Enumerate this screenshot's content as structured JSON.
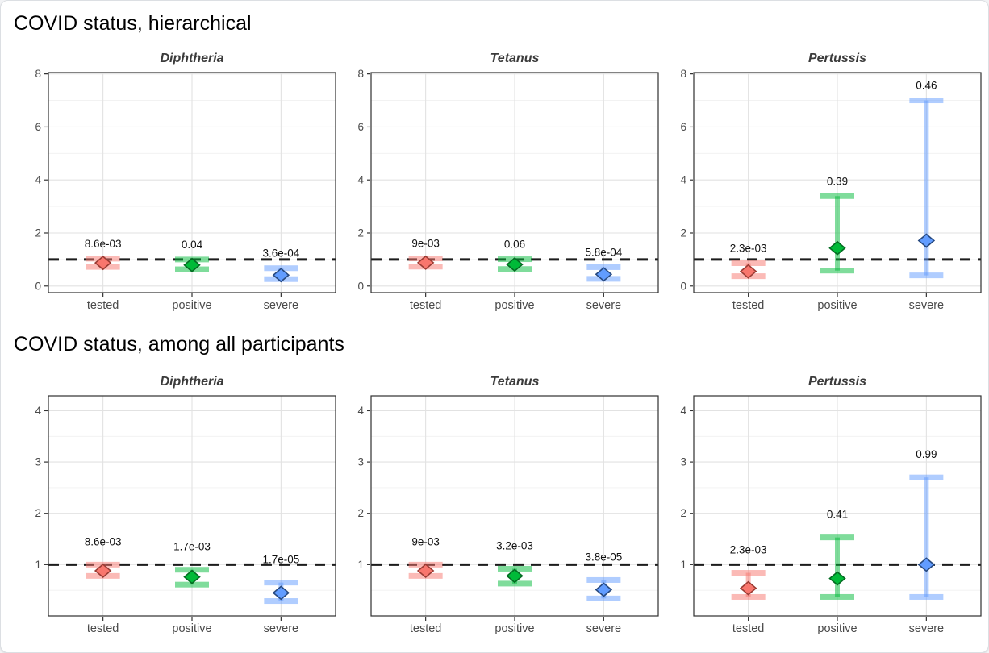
{
  "figure": {
    "sections": [
      {
        "title": "COVID status, hierarchical"
      },
      {
        "title": "COVID status, among all participants"
      }
    ]
  },
  "palette": {
    "tested": {
      "fill": "#F8766D",
      "stroke": "#9A3B33"
    },
    "positive": {
      "fill": "#00BA38",
      "stroke": "#046B22"
    },
    "severe": {
      "fill": "#619CFF",
      "stroke": "#27497F"
    },
    "reference_line": "#1c1c1c",
    "grid_major": "#e2e2e2",
    "grid_minor": "#f0f0f0",
    "panel_border": "#303030"
  },
  "chart_data": [
    {
      "type": "pointrange",
      "section": "COVID status, hierarchical",
      "title": "Diphtheria",
      "categories": [
        "tested",
        "positive",
        "severe"
      ],
      "yticks": [
        0,
        2,
        4,
        6,
        8
      ],
      "ylim": [
        -0.25,
        8.05
      ],
      "reference_line_y": 1,
      "grid": true,
      "points": [
        {
          "category": "tested",
          "estimate": 0.87,
          "lo": 0.72,
          "hi": 1.03,
          "p_label": "8.6e-03"
        },
        {
          "category": "positive",
          "estimate": 0.79,
          "lo": 0.63,
          "hi": 1.0,
          "p_label": "0.04"
        },
        {
          "category": "severe",
          "estimate": 0.41,
          "lo": 0.26,
          "hi": 0.67,
          "p_label": "3.6e-04"
        }
      ]
    },
    {
      "type": "pointrange",
      "section": "COVID status, hierarchical",
      "title": "Tetanus",
      "categories": [
        "tested",
        "positive",
        "severe"
      ],
      "yticks": [
        0,
        2,
        4,
        6,
        8
      ],
      "ylim": [
        -0.25,
        8.05
      ],
      "reference_line_y": 1,
      "grid": true,
      "points": [
        {
          "category": "tested",
          "estimate": 0.88,
          "lo": 0.73,
          "hi": 1.04,
          "p_label": "9e-03"
        },
        {
          "category": "positive",
          "estimate": 0.81,
          "lo": 0.64,
          "hi": 1.01,
          "p_label": "0.06"
        },
        {
          "category": "severe",
          "estimate": 0.44,
          "lo": 0.27,
          "hi": 0.71,
          "p_label": "5.8e-04"
        }
      ]
    },
    {
      "type": "pointrange",
      "section": "COVID status, hierarchical",
      "title": "Pertussis",
      "categories": [
        "tested",
        "positive",
        "severe"
      ],
      "yticks": [
        0,
        2,
        4,
        6,
        8
      ],
      "ylim": [
        -0.25,
        8.05
      ],
      "reference_line_y": 1,
      "grid": true,
      "points": [
        {
          "category": "tested",
          "estimate": 0.55,
          "lo": 0.37,
          "hi": 0.86,
          "p_label": "2.3e-03"
        },
        {
          "category": "positive",
          "estimate": 1.43,
          "lo": 0.58,
          "hi": 3.39,
          "p_label": "0.39"
        },
        {
          "category": "severe",
          "estimate": 1.71,
          "lo": 0.4,
          "hi": 7.0,
          "p_label": "0.46"
        }
      ]
    },
    {
      "type": "pointrange",
      "section": "COVID status, among all participants",
      "title": "Diphtheria",
      "categories": [
        "tested",
        "positive",
        "severe"
      ],
      "yticks": [
        1,
        2,
        3,
        4
      ],
      "ylim": [
        0,
        4.29
      ],
      "reference_line_y": 1,
      "grid": true,
      "points": [
        {
          "category": "tested",
          "estimate": 0.88,
          "lo": 0.78,
          "hi": 1.0,
          "p_label": "8.6e-03"
        },
        {
          "category": "positive",
          "estimate": 0.76,
          "lo": 0.61,
          "hi": 0.9,
          "p_label": "1.7e-03"
        },
        {
          "category": "severe",
          "estimate": 0.45,
          "lo": 0.29,
          "hi": 0.65,
          "p_label": "1.7e-05"
        }
      ]
    },
    {
      "type": "pointrange",
      "section": "COVID status, among all participants",
      "title": "Tetanus",
      "categories": [
        "tested",
        "positive",
        "severe"
      ],
      "yticks": [
        1,
        2,
        3,
        4
      ],
      "ylim": [
        0,
        4.29
      ],
      "reference_line_y": 1,
      "grid": true,
      "points": [
        {
          "category": "tested",
          "estimate": 0.88,
          "lo": 0.78,
          "hi": 1.0,
          "p_label": "9e-03"
        },
        {
          "category": "positive",
          "estimate": 0.78,
          "lo": 0.63,
          "hi": 0.92,
          "p_label": "3.2e-03"
        },
        {
          "category": "severe",
          "estimate": 0.51,
          "lo": 0.34,
          "hi": 0.7,
          "p_label": "3.8e-05"
        }
      ]
    },
    {
      "type": "pointrange",
      "section": "COVID status, among all participants",
      "title": "Pertussis",
      "categories": [
        "tested",
        "positive",
        "severe"
      ],
      "yticks": [
        1,
        2,
        3,
        4
      ],
      "ylim": [
        0,
        4.29
      ],
      "reference_line_y": 1,
      "grid": true,
      "points": [
        {
          "category": "tested",
          "estimate": 0.54,
          "lo": 0.37,
          "hi": 0.84,
          "p_label": "2.3e-03"
        },
        {
          "category": "positive",
          "estimate": 0.73,
          "lo": 0.37,
          "hi": 1.53,
          "p_label": "0.41"
        },
        {
          "category": "severe",
          "estimate": 1.0,
          "lo": 0.37,
          "hi": 2.7,
          "p_label": "0.99"
        }
      ]
    }
  ]
}
